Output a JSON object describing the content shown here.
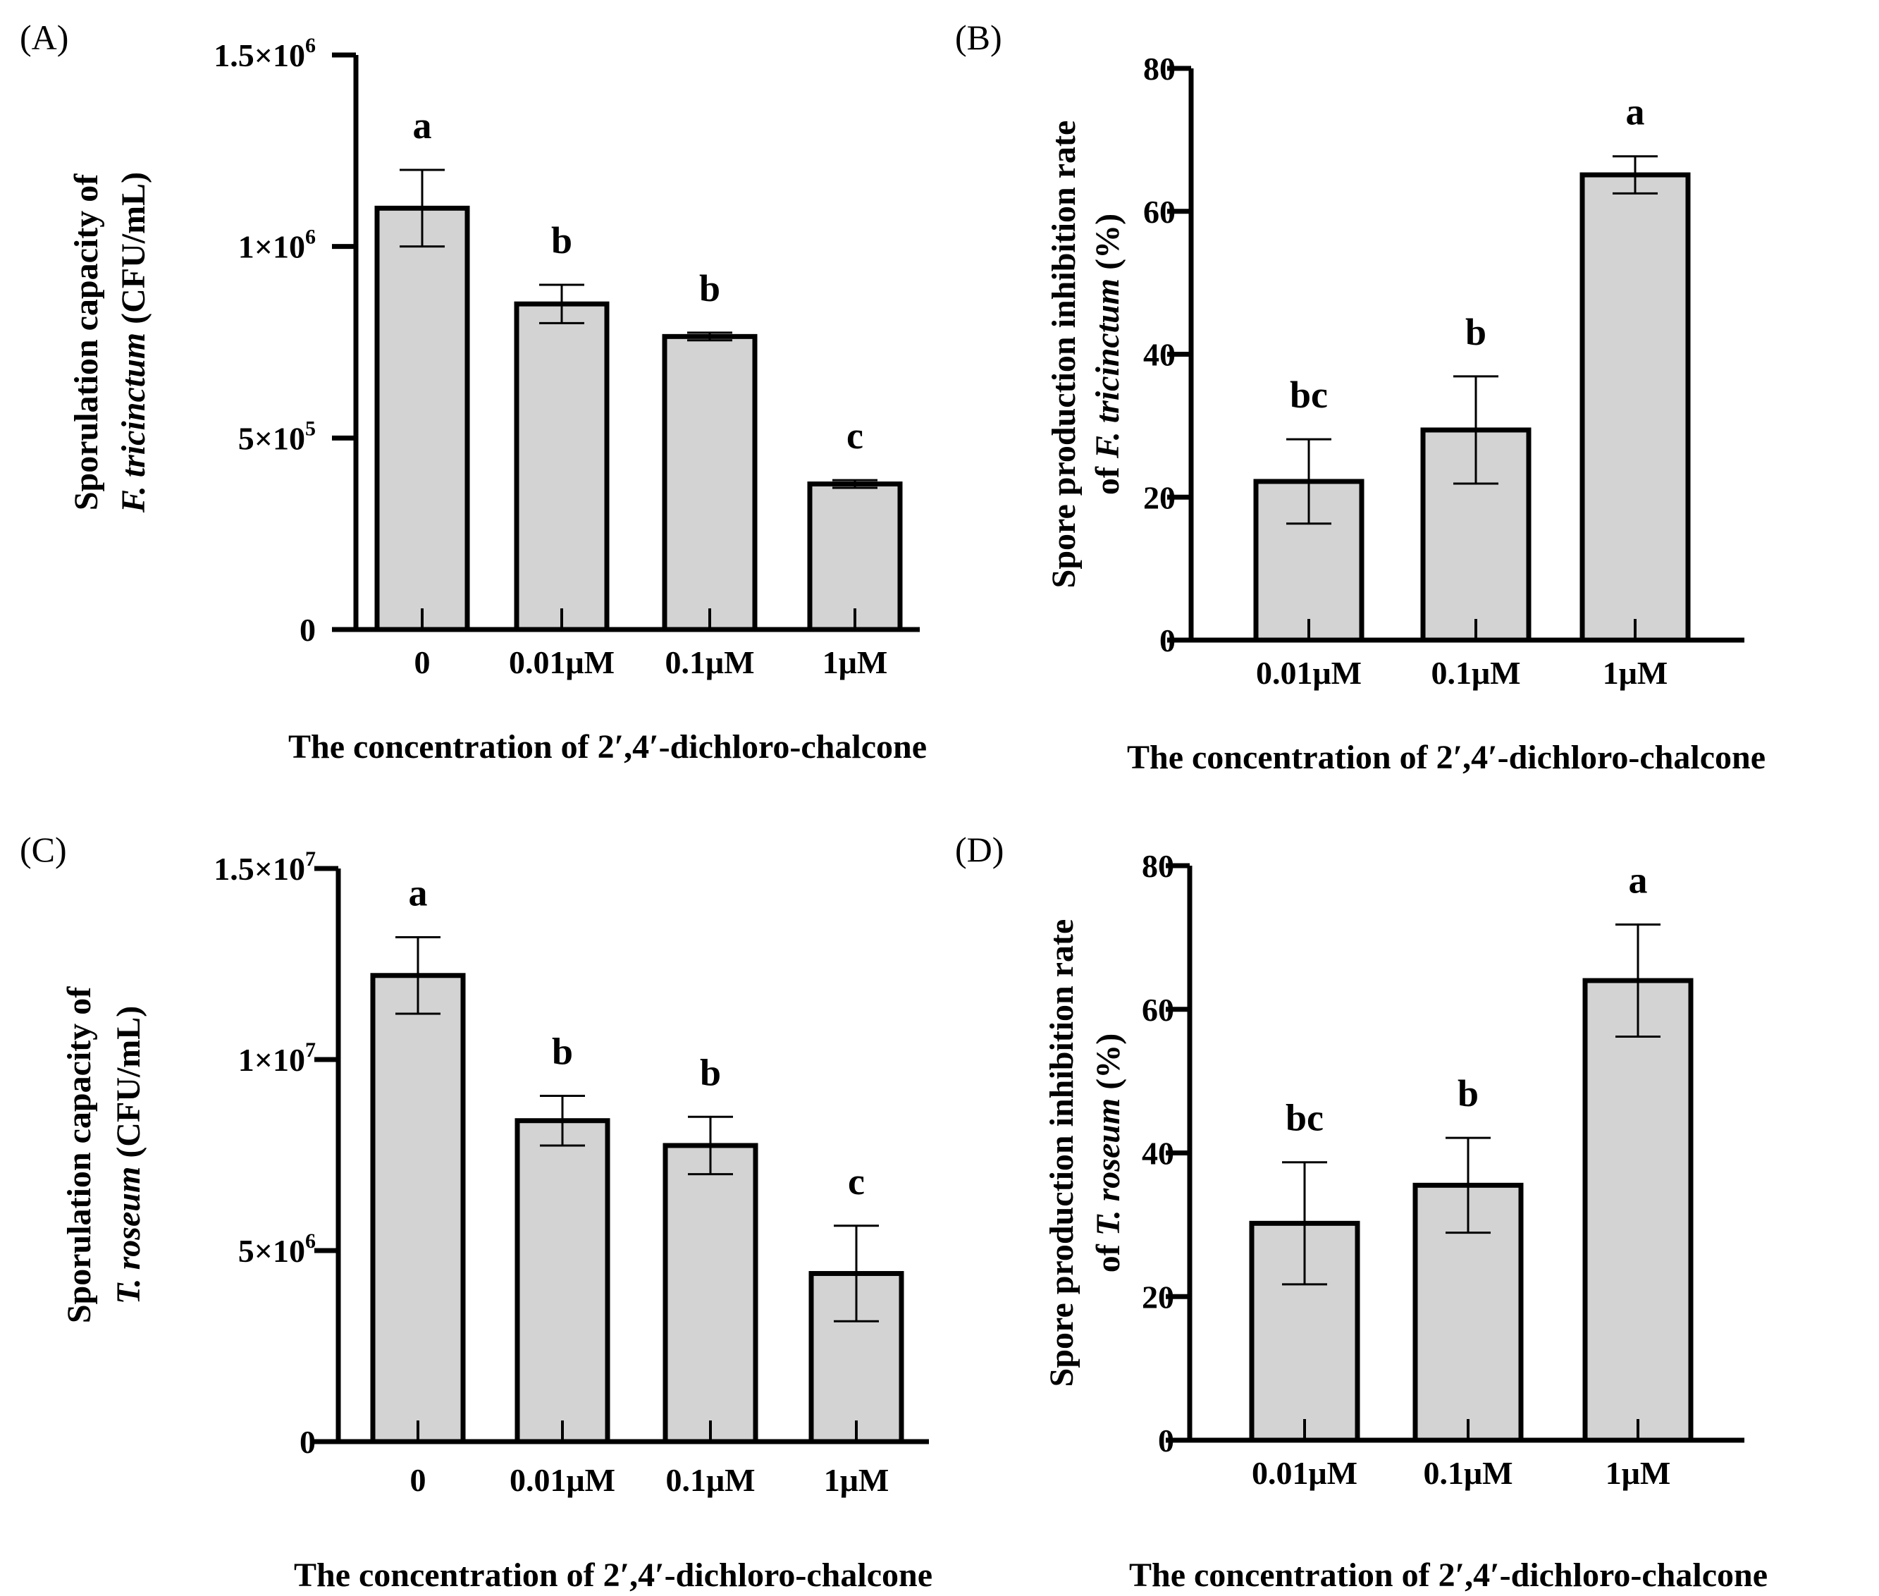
{
  "figure": {
    "colors": {
      "bar_fill": "#d3d3d3",
      "stroke": "#000000",
      "background": "#ffffff"
    }
  },
  "chart_data": [
    {
      "id": "A",
      "panel_label": "(A)",
      "type": "bar",
      "categories": [
        "0",
        "0.01μM",
        "0.1μM",
        "1μM"
      ],
      "values": [
        1100000,
        850000,
        765000,
        380000
      ],
      "errors": [
        100000,
        50000,
        10000,
        10000
      ],
      "letters": [
        "a",
        "b",
        "b",
        "c"
      ],
      "ylim": [
        0,
        1500000
      ],
      "ticks": [
        {
          "value": 0,
          "mantissa": "0",
          "exp": ""
        },
        {
          "value": 500000,
          "mantissa": "5×10",
          "exp": "5"
        },
        {
          "value": 1000000,
          "mantissa": "1×10",
          "exp": "6"
        },
        {
          "value": 1500000,
          "mantissa": "1.5×10",
          "exp": "6"
        }
      ],
      "ylabel_line1": "Sporulation capacity of",
      "ylabel_line2_italic": "F. tricinctum",
      "ylabel_line2_rest": " (CFU/mL)",
      "xlabel": "The concentration of 2′,4′-dichloro-chalcone"
    },
    {
      "id": "B",
      "panel_label": "(B)",
      "type": "bar",
      "categories": [
        "0.01μM",
        "0.1μM",
        "1μM"
      ],
      "values": [
        22.2,
        29.4,
        65.1
      ],
      "errors": [
        5.9,
        7.5,
        2.6
      ],
      "letters": [
        "bc",
        "b",
        "a"
      ],
      "ylim": [
        0,
        80
      ],
      "ticks": [
        {
          "value": 0,
          "mantissa": "0",
          "exp": ""
        },
        {
          "value": 20,
          "mantissa": "20",
          "exp": ""
        },
        {
          "value": 40,
          "mantissa": "40",
          "exp": ""
        },
        {
          "value": 60,
          "mantissa": "60",
          "exp": ""
        },
        {
          "value": 80,
          "mantissa": "80",
          "exp": ""
        }
      ],
      "ylabel_line1": "Spore production inhibition rate",
      "ylabel_line2_prefix": "of ",
      "ylabel_line2_italic": "F. tricinctum",
      "ylabel_line2_rest": "  (%)",
      "xlabel": "The concentration of 2′,4′-dichloro-chalcone"
    },
    {
      "id": "C",
      "panel_label": "(C)",
      "type": "bar",
      "categories": [
        "0",
        "0.01μM",
        "0.1μM",
        "1μM"
      ],
      "values": [
        12200000,
        8400000,
        7750000,
        4400000
      ],
      "errors": [
        1000000,
        650000,
        750000,
        1250000
      ],
      "letters": [
        "a",
        "b",
        "b",
        "c"
      ],
      "ylim": [
        0,
        15000000
      ],
      "ticks": [
        {
          "value": 0,
          "mantissa": "0",
          "exp": ""
        },
        {
          "value": 5000000,
          "mantissa": "5×10",
          "exp": "6"
        },
        {
          "value": 10000000,
          "mantissa": "1×10",
          "exp": "7"
        },
        {
          "value": 15000000,
          "mantissa": "1.5×10",
          "exp": "7"
        }
      ],
      "ylabel_line1": "Sporulation capacity of",
      "ylabel_line2_italic": "T. roseum",
      "ylabel_line2_rest": " (CFU/mL)",
      "xlabel": "The concentration of 2′,4′-dichloro-chalcone"
    },
    {
      "id": "D",
      "panel_label": "(D)",
      "type": "bar",
      "categories": [
        "0.01μM",
        "0.1μM",
        "1μM"
      ],
      "values": [
        30.2,
        35.5,
        64.0
      ],
      "errors": [
        8.5,
        6.6,
        7.8
      ],
      "letters": [
        "bc",
        "b",
        "a"
      ],
      "ylim": [
        0,
        80
      ],
      "ticks": [
        {
          "value": 0,
          "mantissa": "0",
          "exp": ""
        },
        {
          "value": 20,
          "mantissa": "20",
          "exp": ""
        },
        {
          "value": 40,
          "mantissa": "40",
          "exp": ""
        },
        {
          "value": 60,
          "mantissa": "60",
          "exp": ""
        },
        {
          "value": 80,
          "mantissa": "80",
          "exp": ""
        }
      ],
      "ylabel_line1": "Spore production inhibition rate",
      "ylabel_line2_prefix": "of ",
      "ylabel_line2_italic": "T. roseum",
      "ylabel_line2_rest": "  (%)",
      "xlabel": "The concentration of 2′,4′-dichloro-chalcone"
    }
  ]
}
